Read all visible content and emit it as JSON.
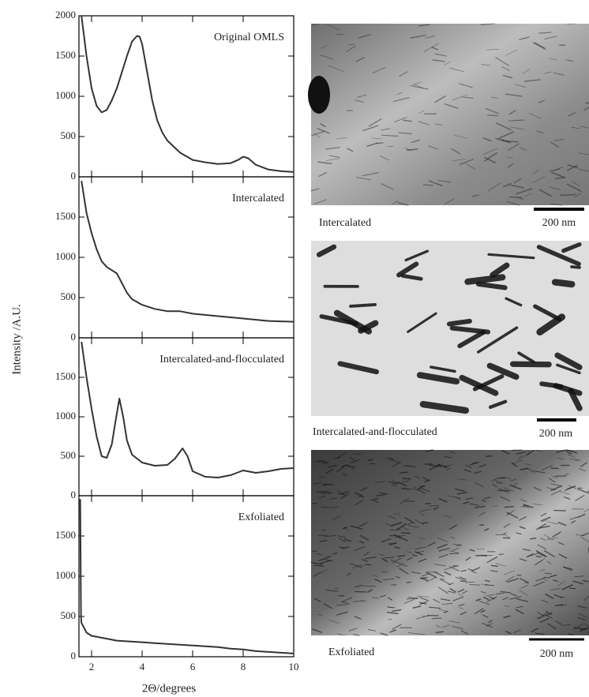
{
  "chart_data": [
    {
      "type": "line",
      "title": "Original OMLS",
      "color": "#333333",
      "x": [
        1.6,
        1.8,
        2.0,
        2.2,
        2.4,
        2.6,
        2.8,
        3.0,
        3.2,
        3.4,
        3.6,
        3.8,
        3.9,
        4.0,
        4.2,
        4.4,
        4.6,
        4.8,
        5.0,
        5.5,
        6.0,
        6.5,
        7.0,
        7.5,
        7.8,
        8.0,
        8.2,
        8.5,
        9.0,
        9.5,
        10.0
      ],
      "values": [
        2000,
        1500,
        1100,
        880,
        800,
        830,
        950,
        1100,
        1300,
        1500,
        1680,
        1750,
        1740,
        1650,
        1300,
        950,
        700,
        550,
        450,
        300,
        210,
        180,
        160,
        170,
        210,
        250,
        230,
        150,
        90,
        70,
        60
      ],
      "xlim": [
        1.5,
        10
      ],
      "xticks": [
        2,
        4,
        6,
        8,
        10
      ],
      "ylim": [
        0,
        2000
      ],
      "yticks": [
        0,
        500,
        1000,
        1500,
        2000
      ]
    },
    {
      "type": "line",
      "title": "Intercalated",
      "color": "#333333",
      "x": [
        1.6,
        1.8,
        2.0,
        2.2,
        2.4,
        2.6,
        2.8,
        3.0,
        3.2,
        3.4,
        3.6,
        4.0,
        4.5,
        5.0,
        5.5,
        6.0,
        7.0,
        8.0,
        9.0,
        10.0
      ],
      "values": [
        1950,
        1550,
        1300,
        1100,
        950,
        880,
        840,
        800,
        680,
        560,
        480,
        410,
        360,
        330,
        330,
        300,
        270,
        240,
        210,
        200
      ],
      "xlim": [
        1.5,
        10
      ],
      "xticks": [
        2,
        4,
        6,
        8,
        10
      ],
      "ylim": [
        0,
        2000
      ],
      "yticks": [
        0,
        500,
        1000,
        1500
      ]
    },
    {
      "type": "line",
      "title": "Intercalated-and-flocculated",
      "color": "#333333",
      "x": [
        1.6,
        1.8,
        2.0,
        2.2,
        2.4,
        2.6,
        2.8,
        2.95,
        3.1,
        3.25,
        3.4,
        3.6,
        4.0,
        4.5,
        5.0,
        5.3,
        5.6,
        5.8,
        6.0,
        6.5,
        7.0,
        7.5,
        8.0,
        8.5,
        9.0,
        9.5,
        10.0
      ],
      "values": [
        1950,
        1500,
        1100,
        750,
        500,
        480,
        650,
        950,
        1230,
        1000,
        700,
        520,
        420,
        380,
        390,
        470,
        600,
        500,
        310,
        240,
        230,
        260,
        320,
        290,
        310,
        340,
        350
      ],
      "xlim": [
        1.5,
        10
      ],
      "xticks": [
        2,
        4,
        6,
        8,
        10
      ],
      "ylim": [
        0,
        2000
      ],
      "yticks": [
        0,
        500,
        1000,
        1500
      ]
    },
    {
      "type": "line",
      "title": "Exfoliated",
      "color": "#333333",
      "x": [
        1.5,
        1.55,
        1.58,
        1.6,
        1.8,
        2.0,
        2.5,
        3.0,
        3.5,
        4.0,
        4.5,
        5.0,
        5.5,
        6.0,
        6.5,
        7.0,
        7.5,
        8.0,
        8.5,
        9.0,
        9.5,
        10.0
      ],
      "values": [
        1950,
        1950,
        500,
        420,
        300,
        260,
        230,
        200,
        190,
        180,
        170,
        160,
        150,
        140,
        130,
        120,
        100,
        90,
        70,
        60,
        50,
        40
      ],
      "xlim": [
        1.5,
        10
      ],
      "xticks": [
        2,
        4,
        6,
        8,
        10
      ],
      "ylim": [
        0,
        2000
      ],
      "yticks": [
        0,
        500,
        1000,
        1500
      ]
    }
  ],
  "axis_labels": {
    "y": "Intensity /A.U.",
    "x": "2Θ/degrees"
  },
  "images": [
    {
      "caption": "Intercalated",
      "scale_bar": "200 nm"
    },
    {
      "caption": "Intercalated-and-flocculated",
      "scale_bar": "200 nm"
    },
    {
      "caption": "Exfoliated",
      "scale_bar": "200 nm"
    }
  ]
}
